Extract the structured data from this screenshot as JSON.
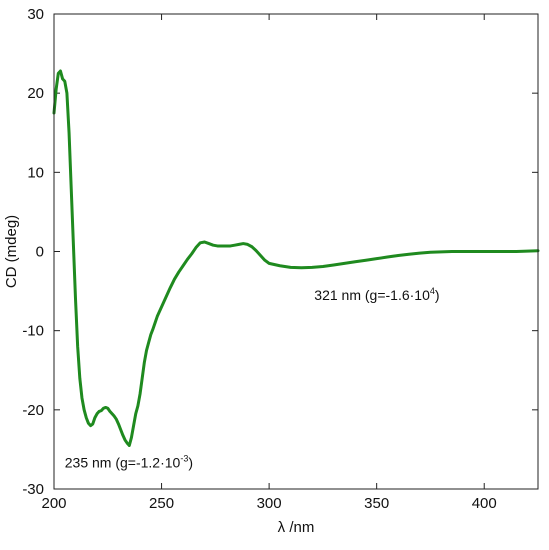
{
  "chart_data": {
    "type": "line",
    "title": "",
    "xlabel": "λ /nm",
    "ylabel": "CD (mdeg)",
    "xlim": [
      200,
      425
    ],
    "ylim": [
      -30,
      30
    ],
    "xticks": [
      200,
      250,
      300,
      350,
      400
    ],
    "yticks": [
      -30,
      -20,
      -10,
      0,
      10,
      20,
      30
    ],
    "grid": false,
    "legend": "none",
    "series": [
      {
        "color": "#1f8a1f",
        "x": [
          200,
          201,
          202,
          203,
          204,
          205,
          206,
          207,
          208,
          209,
          210,
          211,
          212,
          213,
          214,
          215,
          216,
          217,
          218,
          219,
          220,
          221,
          222,
          223,
          224,
          225,
          226,
          227,
          228,
          229,
          230,
          231,
          232,
          233,
          234,
          235,
          236,
          237,
          238,
          239,
          240,
          241,
          242,
          243,
          244,
          245,
          246,
          247,
          248,
          249,
          250,
          252,
          254,
          256,
          258,
          260,
          262,
          264,
          266,
          268,
          270,
          272,
          274,
          276,
          278,
          280,
          282,
          284,
          286,
          288,
          290,
          292,
          294,
          296,
          298,
          300,
          305,
          310,
          315,
          320,
          325,
          330,
          335,
          340,
          345,
          350,
          355,
          360,
          365,
          370,
          375,
          380,
          385,
          390,
          395,
          400,
          405,
          410,
          415,
          420,
          425
        ],
        "y": [
          17.5,
          20.5,
          22.5,
          22.8,
          21.8,
          21.5,
          20,
          15,
          8,
          1,
          -6,
          -12,
          -16,
          -18.5,
          -20,
          -21,
          -21.7,
          -22,
          -21.8,
          -21,
          -20.5,
          -20.2,
          -20.1,
          -19.8,
          -19.7,
          -19.8,
          -20.2,
          -20.5,
          -20.8,
          -21.2,
          -21.8,
          -22.5,
          -23.2,
          -23.8,
          -24.2,
          -24.5,
          -23.5,
          -22,
          -20.5,
          -19.5,
          -18,
          -16,
          -14,
          -12.5,
          -11.5,
          -10.5,
          -9.8,
          -9,
          -8.2,
          -7.6,
          -7,
          -5.8,
          -4.6,
          -3.5,
          -2.6,
          -1.8,
          -1,
          -0.3,
          0.5,
          1.1,
          1.2,
          1,
          0.8,
          0.7,
          0.7,
          0.7,
          0.7,
          0.8,
          0.9,
          1,
          0.9,
          0.6,
          0.1,
          -0.5,
          -1.1,
          -1.5,
          -1.8,
          -2,
          -2.05,
          -2,
          -1.9,
          -1.7,
          -1.5,
          -1.3,
          -1.1,
          -0.9,
          -0.7,
          -0.5,
          -0.35,
          -0.2,
          -0.1,
          -0.05,
          0,
          0,
          0,
          0,
          0,
          0,
          0,
          0.05,
          0.1
        ]
      }
    ],
    "annotations": [
      {
        "x": 321,
        "y": -6.1,
        "text": "321 nm (g=-1.6·10",
        "sup": "4",
        "suffix": ")"
      },
      {
        "x": 205,
        "y": -27.3,
        "text": "235 nm (g=-1.2·10",
        "sup": "-3",
        "suffix": ")"
      }
    ]
  }
}
